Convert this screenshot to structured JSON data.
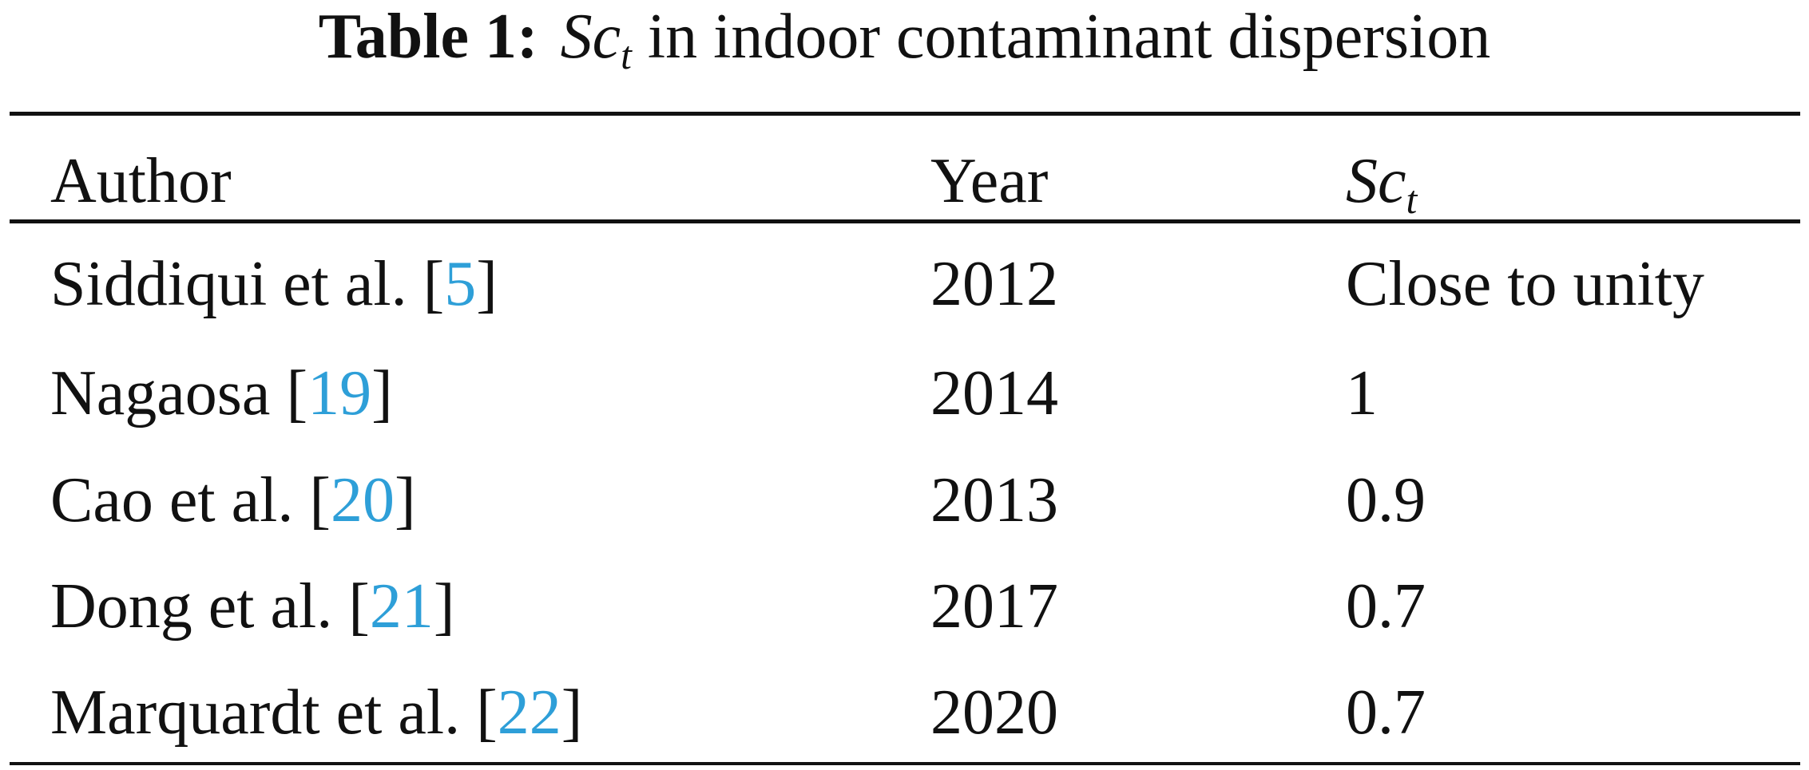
{
  "caption": {
    "label": "Table 1:",
    "symbol_base": "Sc",
    "symbol_sub": "t",
    "text": "in indoor contaminant dispersion"
  },
  "table": {
    "columns": {
      "author": "Author",
      "year": "Year",
      "symbol_base": "Sc",
      "symbol_sub": "t"
    },
    "rows": [
      {
        "author": "Siddiqui et al.",
        "ref": "5",
        "year": "2012",
        "sct": "Close to unity"
      },
      {
        "author": "Nagaosa",
        "ref": "19",
        "year": "2014",
        "sct": "1"
      },
      {
        "author": "Cao et al.",
        "ref": "20",
        "year": "2013",
        "sct": "0.9"
      },
      {
        "author": "Dong et al.",
        "ref": "21",
        "year": "2017",
        "sct": "0.7"
      },
      {
        "author": "Marquardt et al.",
        "ref": "22",
        "year": "2020",
        "sct": "0.7"
      }
    ]
  },
  "colors": {
    "text": "#111111",
    "link": "#2e9fd8",
    "background": "#ffffff"
  }
}
